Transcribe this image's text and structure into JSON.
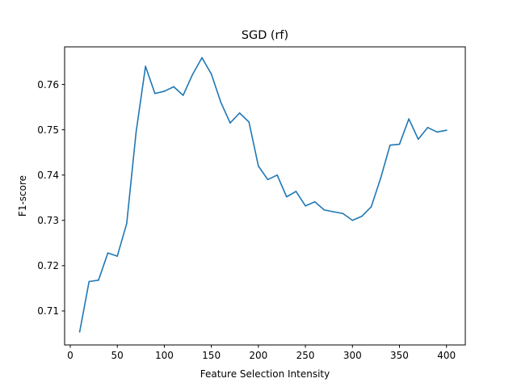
{
  "chart_data": {
    "type": "line",
    "title": "SGD (rf)",
    "xlabel": "Feature Selection Intensity",
    "ylabel": "F1-score",
    "xlim": [
      -6,
      420
    ],
    "ylim": [
      0.7025,
      0.7683
    ],
    "xticks": [
      0,
      50,
      100,
      150,
      200,
      250,
      300,
      350,
      400
    ],
    "yticks": [
      0.71,
      0.72,
      0.73,
      0.74,
      0.75,
      0.76
    ],
    "ytick_labels": [
      "0.71",
      "0.72",
      "0.73",
      "0.74",
      "0.75",
      "0.76"
    ],
    "grid": false,
    "line_color": "#1f77b4",
    "series": [
      {
        "x": [
          10,
          20,
          30,
          40,
          50,
          60,
          70,
          80,
          90,
          100,
          110,
          120,
          130,
          140,
          150,
          160,
          170,
          180,
          190,
          200,
          210,
          220,
          230,
          240,
          250,
          260,
          270,
          280,
          290,
          300,
          310,
          320,
          330,
          340,
          350,
          360,
          370,
          380,
          390,
          400
        ],
        "values": [
          0.7054,
          0.7165,
          0.7168,
          0.7228,
          0.7221,
          0.7293,
          0.7495,
          0.764,
          0.758,
          0.7585,
          0.7595,
          0.7576,
          0.7622,
          0.7659,
          0.7623,
          0.7561,
          0.7515,
          0.7537,
          0.7517,
          0.742,
          0.739,
          0.74,
          0.7352,
          0.7364,
          0.7332,
          0.7341,
          0.7323,
          0.7319,
          0.7315,
          0.73,
          0.7309,
          0.733,
          0.7393,
          0.7466,
          0.7468,
          0.7524,
          0.7479,
          0.7505,
          0.7495,
          0.7499
        ]
      }
    ]
  }
}
